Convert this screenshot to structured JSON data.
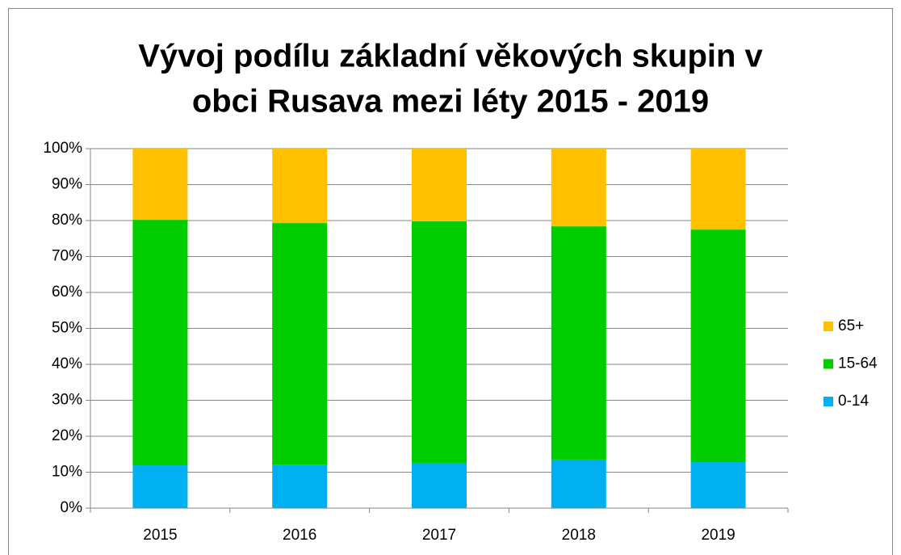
{
  "chart_data": {
    "type": "stacked_bar",
    "title": [
      "Vývoj podílu základní věkových skupin v",
      "obci Rusava mezi léty 2015 - 2019"
    ],
    "categories": [
      "2015",
      "2016",
      "2017",
      "2018",
      "2019"
    ],
    "series": [
      {
        "name": "0-14",
        "color": "#00b0f0",
        "values": [
          11.9,
          12.1,
          12.6,
          13.5,
          12.8
        ]
      },
      {
        "name": "15-64",
        "color": "#00cc00",
        "values": [
          68.3,
          67.2,
          67.2,
          64.9,
          64.7
        ]
      },
      {
        "name": "65+",
        "color": "#ffc000",
        "values": [
          19.8,
          20.7,
          20.2,
          21.6,
          22.5
        ]
      }
    ],
    "ylim": [
      0,
      100
    ],
    "yticks": [
      {
        "value": 0,
        "label": "0%"
      },
      {
        "value": 10,
        "label": "10%"
      },
      {
        "value": 20,
        "label": "20%"
      },
      {
        "value": 30,
        "label": "30%"
      },
      {
        "value": 40,
        "label": "40%"
      },
      {
        "value": 50,
        "label": "50%"
      },
      {
        "value": 60,
        "label": "60%"
      },
      {
        "value": 70,
        "label": "70%"
      },
      {
        "value": 80,
        "label": "80%"
      },
      {
        "value": 90,
        "label": "90%"
      },
      {
        "value": 100,
        "label": "100%"
      }
    ],
    "grid": true,
    "legend": "right"
  }
}
